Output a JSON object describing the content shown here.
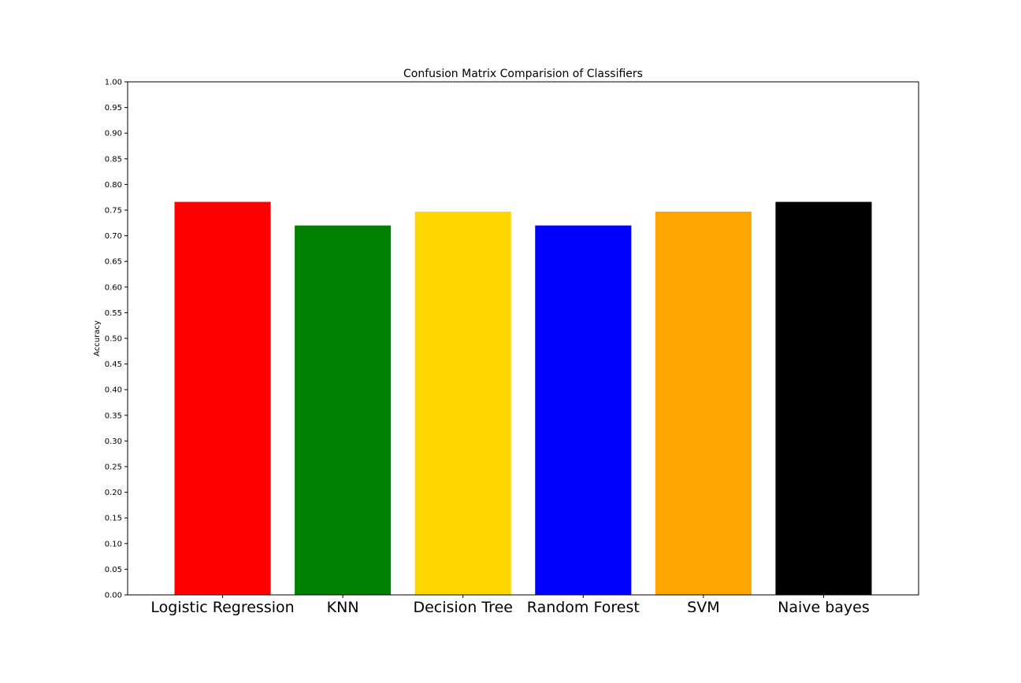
{
  "chart_data": {
    "type": "bar",
    "title": "Confusion Matrix Comparision of Classifiers",
    "xlabel": "",
    "ylabel": "Accuracy",
    "categories": [
      "Logistic Regression",
      "KNN",
      "Decision Tree",
      "Random Forest",
      "SVM",
      "Naive bayes"
    ],
    "values": [
      0.766,
      0.72,
      0.747,
      0.72,
      0.747,
      0.766
    ],
    "colors": [
      "#ff0000",
      "#008000",
      "#ffd700",
      "#0000ff",
      "#ffa500",
      "#000000"
    ],
    "ylim": [
      0,
      1
    ],
    "yticks": [
      "0.00",
      "0.05",
      "0.10",
      "0.15",
      "0.20",
      "0.25",
      "0.30",
      "0.35",
      "0.40",
      "0.45",
      "0.50",
      "0.55",
      "0.60",
      "0.65",
      "0.70",
      "0.75",
      "0.80",
      "0.85",
      "0.90",
      "0.95",
      "1.00"
    ],
    "grid": false,
    "legend": "none"
  }
}
